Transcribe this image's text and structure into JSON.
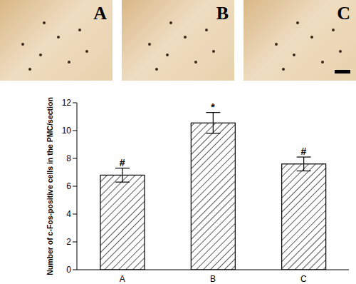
{
  "panels": {
    "labels": [
      "A",
      "B",
      "C"
    ]
  },
  "chart_data": {
    "type": "bar",
    "categories": [
      "A",
      "B",
      "C"
    ],
    "values": [
      6.8,
      10.55,
      7.6
    ],
    "errors": [
      0.5,
      0.75,
      0.5
    ],
    "annotations": [
      "#",
      "*",
      "#"
    ],
    "ylabel": "Number of c-Fos-positive cells in the PMC/section",
    "ylim": [
      0,
      12
    ],
    "yticks": [
      0,
      2,
      4,
      6,
      8,
      10,
      12
    ],
    "color": "#000000",
    "grid": false
  }
}
